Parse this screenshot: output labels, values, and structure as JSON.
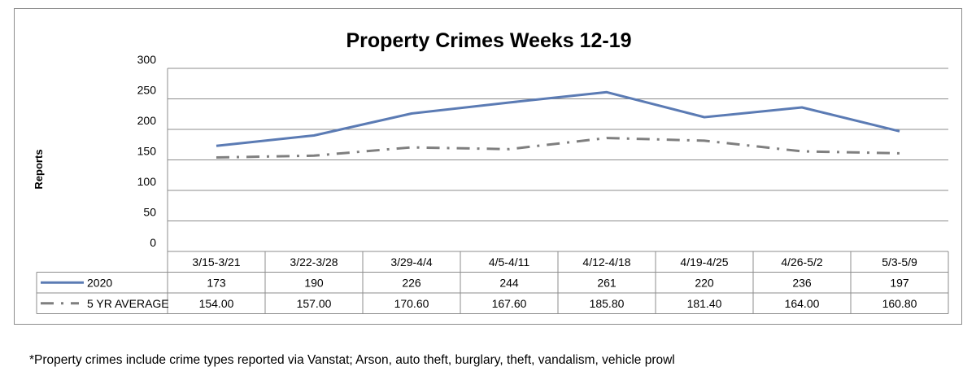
{
  "chart_data": {
    "type": "line",
    "title": "Property Crimes Weeks 12-19",
    "ylabel": "Reports",
    "xlabel": "",
    "ylim": [
      0,
      300
    ],
    "yticks": [
      0,
      50,
      100,
      150,
      200,
      250,
      300
    ],
    "grid": true,
    "categories": [
      "3/15-3/21",
      "3/22-3/28",
      "3/29-4/4",
      "4/5-4/11",
      "4/12-4/18",
      "4/19-4/25",
      "4/26-5/2",
      "5/3-5/9"
    ],
    "series": [
      {
        "name": "2020",
        "color": "#5b7bb4",
        "style": "solid",
        "values": [
          173,
          190,
          226,
          244,
          261,
          220,
          236,
          197
        ],
        "labels": [
          "173",
          "190",
          "226",
          "244",
          "261",
          "220",
          "236",
          "197"
        ]
      },
      {
        "name": "5 YR AVERAGE",
        "color": "#7f7f7f",
        "style": "dash-dot",
        "values": [
          154.0,
          157.0,
          170.6,
          167.6,
          185.8,
          181.4,
          164.0,
          160.8
        ],
        "labels": [
          "154.00",
          "157.00",
          "170.60",
          "167.60",
          "185.80",
          "181.40",
          "164.00",
          "160.80"
        ]
      }
    ]
  },
  "footnote": "*Property crimes include crime types reported via Vanstat; Arson, auto theft, burglary, theft, vandalism, vehicle prowl"
}
